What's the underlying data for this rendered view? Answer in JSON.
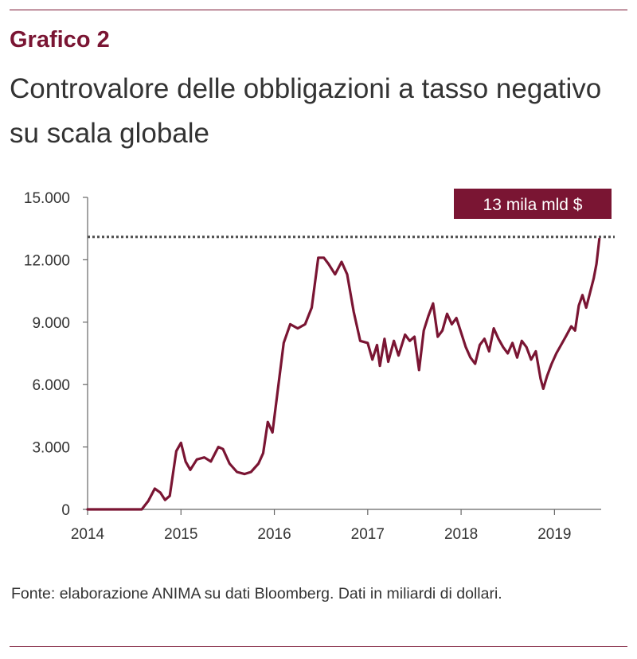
{
  "header": {
    "figure_label": "Grafico 2",
    "title": "Controvalore delle obbligazioni a tasso negativo su scala globale"
  },
  "footer": {
    "source": "Fonte: elaborazione ANIMA su dati Bloomberg. Dati in miliardi di dollari."
  },
  "colors": {
    "accent": "#7a1533",
    "text": "#333333",
    "reference_line": "#555555"
  },
  "chart_data": {
    "type": "line",
    "title": "Controvalore delle obbligazioni a tasso negativo su scala globale",
    "xlabel": "",
    "ylabel": "",
    "xlim": [
      2014,
      2019.5
    ],
    "ylim": [
      0,
      15000
    ],
    "x_ticks": [
      "2014",
      "2015",
      "2016",
      "2017",
      "2018",
      "2019"
    ],
    "y_ticks": [
      "0",
      "3.000",
      "6.000",
      "9.000",
      "12.000",
      "15.000"
    ],
    "grid": false,
    "series": [
      {
        "color": "#7a1533",
        "points": [
          [
            2014.0,
            0
          ],
          [
            2014.3,
            0
          ],
          [
            2014.5,
            0
          ],
          [
            2014.58,
            0
          ],
          [
            2014.65,
            400
          ],
          [
            2014.72,
            1000
          ],
          [
            2014.78,
            800
          ],
          [
            2014.83,
            450
          ],
          [
            2014.88,
            650
          ],
          [
            2014.95,
            2800
          ],
          [
            2015.0,
            3200
          ],
          [
            2015.05,
            2300
          ],
          [
            2015.1,
            1900
          ],
          [
            2015.17,
            2400
          ],
          [
            2015.25,
            2500
          ],
          [
            2015.32,
            2300
          ],
          [
            2015.4,
            3000
          ],
          [
            2015.45,
            2900
          ],
          [
            2015.52,
            2200
          ],
          [
            2015.6,
            1800
          ],
          [
            2015.68,
            1700
          ],
          [
            2015.75,
            1800
          ],
          [
            2015.83,
            2200
          ],
          [
            2015.88,
            2700
          ],
          [
            2015.93,
            4200
          ],
          [
            2015.98,
            3700
          ],
          [
            2016.03,
            5500
          ],
          [
            2016.1,
            8000
          ],
          [
            2016.17,
            8900
          ],
          [
            2016.25,
            8700
          ],
          [
            2016.33,
            8900
          ],
          [
            2016.4,
            9700
          ],
          [
            2016.47,
            12100
          ],
          [
            2016.53,
            12100
          ],
          [
            2016.58,
            11800
          ],
          [
            2016.65,
            11300
          ],
          [
            2016.72,
            11900
          ],
          [
            2016.78,
            11300
          ],
          [
            2016.85,
            9500
          ],
          [
            2016.92,
            8100
          ],
          [
            2017.0,
            8000
          ],
          [
            2017.05,
            7200
          ],
          [
            2017.1,
            7900
          ],
          [
            2017.13,
            6900
          ],
          [
            2017.18,
            8200
          ],
          [
            2017.22,
            7100
          ],
          [
            2017.28,
            8100
          ],
          [
            2017.33,
            7400
          ],
          [
            2017.4,
            8400
          ],
          [
            2017.45,
            8100
          ],
          [
            2017.5,
            8300
          ],
          [
            2017.55,
            6700
          ],
          [
            2017.6,
            8600
          ],
          [
            2017.65,
            9300
          ],
          [
            2017.7,
            9900
          ],
          [
            2017.75,
            8300
          ],
          [
            2017.8,
            8600
          ],
          [
            2017.85,
            9400
          ],
          [
            2017.9,
            8900
          ],
          [
            2017.95,
            9200
          ],
          [
            2018.0,
            8500
          ],
          [
            2018.05,
            7800
          ],
          [
            2018.1,
            7300
          ],
          [
            2018.15,
            7000
          ],
          [
            2018.2,
            7900
          ],
          [
            2018.25,
            8200
          ],
          [
            2018.3,
            7600
          ],
          [
            2018.35,
            8700
          ],
          [
            2018.4,
            8200
          ],
          [
            2018.45,
            7800
          ],
          [
            2018.5,
            7500
          ],
          [
            2018.55,
            8000
          ],
          [
            2018.6,
            7300
          ],
          [
            2018.65,
            8100
          ],
          [
            2018.7,
            7800
          ],
          [
            2018.75,
            7200
          ],
          [
            2018.8,
            7600
          ],
          [
            2018.85,
            6300
          ],
          [
            2018.88,
            5800
          ],
          [
            2018.92,
            6400
          ],
          [
            2018.97,
            7000
          ],
          [
            2019.02,
            7500
          ],
          [
            2019.07,
            7900
          ],
          [
            2019.12,
            8300
          ],
          [
            2019.18,
            8800
          ],
          [
            2019.22,
            8600
          ],
          [
            2019.26,
            9800
          ],
          [
            2019.3,
            10300
          ],
          [
            2019.34,
            9700
          ],
          [
            2019.38,
            10400
          ],
          [
            2019.42,
            11100
          ],
          [
            2019.45,
            11800
          ],
          [
            2019.48,
            13000
          ]
        ]
      }
    ],
    "reference_line": {
      "y": 13100,
      "style": "dotted"
    },
    "annotations": [
      {
        "text": "13 mila mld $",
        "position": "top-right"
      }
    ]
  }
}
